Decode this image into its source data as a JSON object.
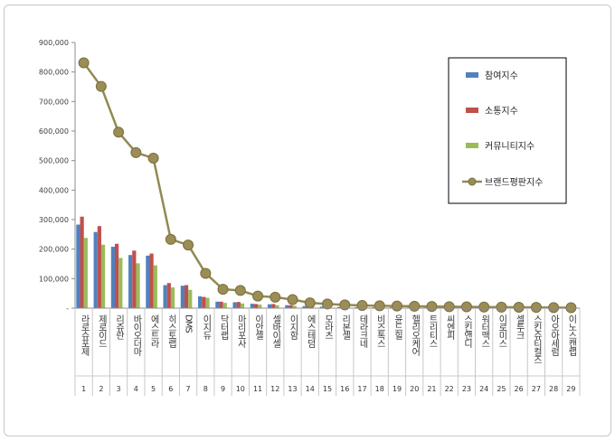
{
  "chart_data": {
    "type": "bar",
    "title": "",
    "xlabel": "",
    "ylabel": "",
    "ylim": [
      0,
      900000
    ],
    "y_ticks": [
      "-",
      "100,000",
      "200,000",
      "300,000",
      "400,000",
      "500,000",
      "600,000",
      "700,000",
      "800,000",
      "900,000"
    ],
    "grid": false,
    "legend_position": "top-right",
    "ranks": [
      "1",
      "2",
      "3",
      "4",
      "5",
      "6",
      "7",
      "8",
      "9",
      "10",
      "11",
      "12",
      "13",
      "14",
      "15",
      "16",
      "17",
      "18",
      "19",
      "20",
      "21",
      "22",
      "23",
      "24",
      "25",
      "26",
      "27",
      "28",
      "29"
    ],
    "categories": [
      "라로슈포제",
      "제로이드",
      "리쥬란",
      "바이오더마",
      "에스트라",
      "히스토랩",
      "DMS",
      "이지듀",
      "닥터랩",
      "마리포사",
      "이안셀",
      "셀바이셀",
      "이지함",
      "에스테덤",
      "모라츠",
      "리본셀",
      "테라크네",
      "비즈톡스",
      "윤드힐",
      "헬리오케어",
      "트리티스",
      "씨엔피",
      "스킨앤디",
      "워터맥스",
      "이로미스",
      "셀투크",
      "스킨슈티컬즈",
      "아오아세럼",
      "이노스캔랩"
    ],
    "series": [
      {
        "name": "참여지수",
        "kind": "bar",
        "color": "#4f81bd",
        "values": [
          283000,
          258000,
          208000,
          180000,
          178000,
          78000,
          76000,
          40000,
          22000,
          20000,
          15000,
          13000,
          10000,
          7000,
          5000,
          4000,
          3500,
          3000,
          2800,
          2500,
          2300,
          2000,
          1800,
          1500,
          1300,
          1200,
          1000,
          800,
          600
        ]
      },
      {
        "name": "소통지수",
        "kind": "bar",
        "color": "#c0504d",
        "values": [
          310000,
          278000,
          218000,
          195000,
          185000,
          85000,
          78000,
          38000,
          22000,
          21000,
          14000,
          14000,
          10000,
          6000,
          5000,
          4000,
          3000,
          2800,
          2500,
          2300,
          2000,
          1800,
          1600,
          1400,
          1200,
          1000,
          900,
          700,
          500
        ]
      },
      {
        "name": "커뮤니티지수",
        "kind": "bar",
        "color": "#9bbb59",
        "values": [
          238000,
          215000,
          170000,
          152000,
          145000,
          70000,
          62000,
          35000,
          18000,
          16000,
          12000,
          10000,
          8000,
          5000,
          4000,
          3000,
          2500,
          2000,
          1800,
          1600,
          1500,
          1300,
          1100,
          1000,
          900,
          800,
          700,
          500,
          400
        ]
      },
      {
        "name": "브랜드평판지수",
        "kind": "line",
        "color": "#938953",
        "values": [
          831000,
          751000,
          596000,
          527000,
          508000,
          233000,
          214000,
          118000,
          64000,
          60000,
          41000,
          37000,
          29000,
          18000,
          14000,
          11000,
          9000,
          8000,
          7200,
          6400,
          5800,
          5100,
          4500,
          3900,
          3400,
          3000,
          2600,
          2000,
          1500
        ]
      }
    ]
  }
}
